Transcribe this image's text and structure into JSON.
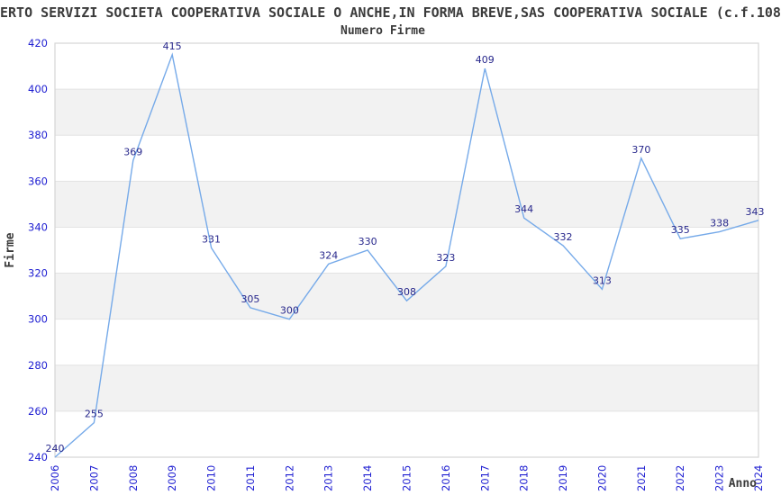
{
  "page": {
    "title": "ERTO SERVIZI SOCIETA COOPERATIVA SOCIALE O ANCHE,IN FORMA BREVE,SAS COOPERATIVA SOCIALE (c.f.108"
  },
  "chart_data": {
    "type": "line",
    "title": "Numero Firme",
    "xlabel": "Anno",
    "ylabel": "Firme",
    "categories": [
      2006,
      2007,
      2008,
      2009,
      2010,
      2011,
      2012,
      2013,
      2014,
      2015,
      2016,
      2017,
      2018,
      2019,
      2020,
      2021,
      2022,
      2023,
      2024
    ],
    "values": [
      240,
      255,
      369,
      415,
      331,
      305,
      300,
      324,
      330,
      308,
      323,
      409,
      344,
      332,
      313,
      370,
      335,
      338,
      343
    ],
    "ylim": [
      240,
      420
    ],
    "ytick_step": 20,
    "grid": "horizontal gridlines with alternating gray bands",
    "legend_position": "none",
    "point_labels_visible": true,
    "colors": {
      "line": "#76aae9",
      "axis_tick_labels": "#2121d2",
      "point_labels": "#28288c",
      "band_fill": "#f2f2f2",
      "gridline": "#e3e3e3",
      "plot_border": "#d5d5d5",
      "text": "#3b3b3b",
      "background": "#ffffff"
    }
  }
}
